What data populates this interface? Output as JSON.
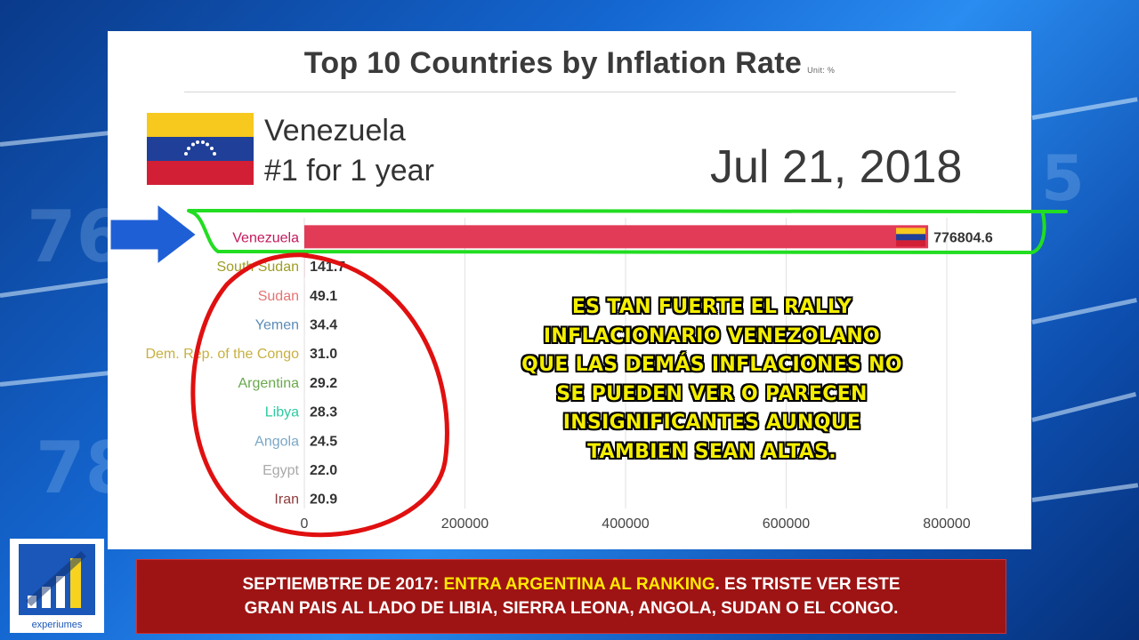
{
  "header": {
    "title": "Top 10 Countries by Inflation Rate",
    "unit": "Unit: %"
  },
  "leader": {
    "country": "Venezuela",
    "rank_text": "#1 for 1 year"
  },
  "date": "Jul 21, 2018",
  "chart_data": {
    "type": "bar",
    "orientation": "horizontal",
    "title": "Top 10 Countries by Inflation Rate",
    "unit": "%",
    "categories": [
      "Venezuela",
      "South Sudan",
      "Sudan",
      "Yemen",
      "Dem. Rep. of the Congo",
      "Argentina",
      "Libya",
      "Angola",
      "Egypt",
      "Iran"
    ],
    "values": [
      776804.6,
      141.7,
      49.1,
      34.4,
      31.0,
      29.2,
      28.3,
      24.5,
      22.0,
      20.9
    ],
    "value_labels": [
      "776804.6",
      "141.7",
      "49.1",
      "34.4",
      "31.0",
      "29.2",
      "28.3",
      "24.5",
      "22.0",
      "20.9"
    ],
    "label_colors": [
      "#c2185b",
      "#9e9d24",
      "#e57373",
      "#5b8bb8",
      "#c8b040",
      "#6aa84f",
      "#2ec9a0",
      "#7aa7c7",
      "#aaaaaa",
      "#8d3b3b"
    ],
    "bar_color": "#e23b57",
    "xlim": [
      0,
      880000
    ],
    "xticks": [
      0,
      200000,
      400000,
      600000,
      800000
    ],
    "xtick_labels": [
      "0",
      "200000",
      "400000",
      "600000",
      "800000"
    ],
    "grid": true
  },
  "caption_lines": [
    "ES TAN FUERTE EL RALLY",
    "INFLACIONARIO VENEZOLANO",
    "QUE LAS DEMÁS INFLACIONES NO",
    "SE PUEDEN VER O PARECEN",
    "INSIGNIFICANTES AUNQUE",
    "TAMBIEN SEAN ALTAS."
  ],
  "banner": {
    "line1_a": "SEPTIEMBTRE DE 2017: ",
    "line1_highlight": "ENTRA ARGENTINA AL RANKING",
    "line1_b": ". ES TRISTE VER ESTE",
    "line2": "GRAN PAIS AL LADO DE LIBIA, SIERRA LEONA, ANGOLA, SUDAN O EL CONGO."
  },
  "logo": {
    "text": "experiumes"
  },
  "colors": {
    "annotation_green": "#22dd22",
    "annotation_red": "#e01010",
    "arrow_blue": "#1f5fd6",
    "banner_red": "#9e1414",
    "caption_yellow": "#f4ee00"
  }
}
